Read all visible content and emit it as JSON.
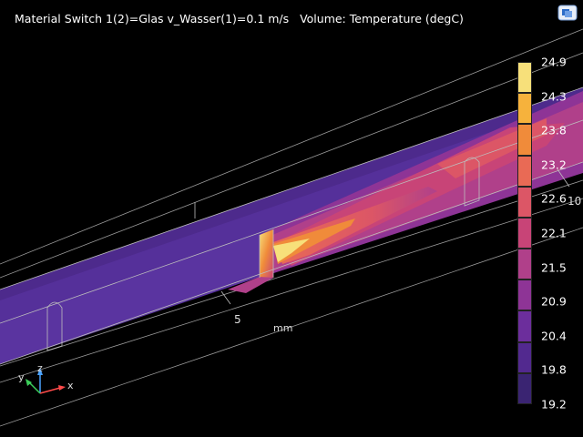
{
  "plot_title": "Material Switch 1(2)=Glas v_Wasser(1)=0.1 m/s   Volume: Temperature (degC)",
  "axes": {
    "unit": "mm",
    "tick_5": "5",
    "tick_10": "10"
  },
  "triad": {
    "x": "x",
    "y": "y",
    "z": "z"
  },
  "colorbar": {
    "labels": [
      "24.9",
      "24.3",
      "23.8",
      "23.2",
      "22.6",
      "22.1",
      "21.5",
      "20.9",
      "20.4",
      "19.8",
      "19.2"
    ],
    "colors": [
      "#f7e07a",
      "#f6b23c",
      "#f08b3a",
      "#e96a55",
      "#dc5666",
      "#c84477",
      "#b0408a",
      "#8e3496",
      "#6c2e9c",
      "#52298f",
      "#3a2472"
    ]
  },
  "colors": {
    "background": "#000000",
    "domain_base": "#4d2a8c",
    "outline": "#bdbdbd"
  },
  "icons": {
    "toolbar_logo": "comsol-logo-icon"
  }
}
